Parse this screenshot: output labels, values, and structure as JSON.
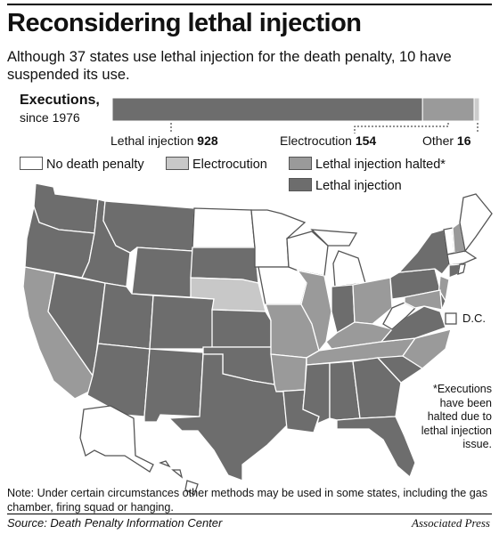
{
  "title": "Reconsidering lethal injection",
  "subtitle": "Although 37 states use lethal injection for the death penalty, 10 have suspended its use.",
  "executions": {
    "label": "Executions,",
    "sublabel": "since 1976"
  },
  "chart_data": {
    "type": "bar",
    "orientation": "horizontal-stacked",
    "title": "Executions, since 1976",
    "categories": [
      "Lethal injection",
      "Electrocution",
      "Other"
    ],
    "values": [
      928,
      154,
      16
    ],
    "colors": [
      "#6d6d6d",
      "#9a9a9a",
      "#cccccc"
    ]
  },
  "bar_labels": [
    {
      "name": "Lethal injection",
      "value": "928"
    },
    {
      "name": "Electrocution",
      "value": "154"
    },
    {
      "name": "Other",
      "value": "16"
    }
  ],
  "legend": [
    {
      "label": "No death penalty",
      "color": "#ffffff"
    },
    {
      "label": "Electrocution",
      "color": "#c8c8c8"
    },
    {
      "label": "Lethal injection halted*",
      "color": "#9a9a9a"
    },
    {
      "label": "Lethal injection",
      "color": "#6d6d6d"
    }
  ],
  "map": {
    "dc_label": "D.C.",
    "halted_note": "*Executions have been halted due to lethal injection issue.",
    "colors": {
      "none": "#ffffff",
      "electrocution": "#c8c8c8",
      "halted": "#9a9a9a",
      "lethal": "#6d6d6d"
    }
  },
  "note": "Note: Under certain circumstances other methods may be used in some states, including the gas chamber, firing squad or hanging.",
  "source": "Source: Death Penalty Information Center",
  "credit": "Associated Press"
}
